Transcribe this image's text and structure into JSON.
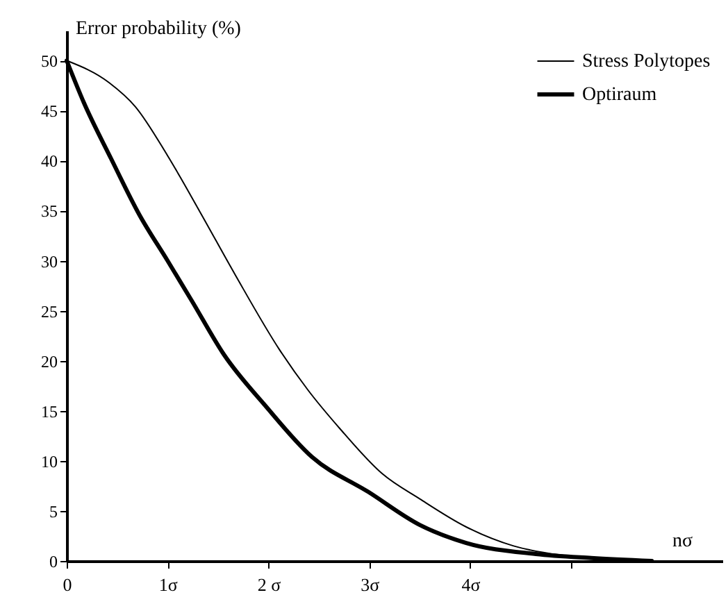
{
  "chart_data": {
    "type": "line",
    "xlabel": "nσ",
    "ylabel": "Error probability (%)",
    "xlim": [
      0,
      6.5
    ],
    "ylim": [
      0,
      53
    ],
    "xticks": [
      {
        "value": 0,
        "label": "0"
      },
      {
        "value": 1,
        "label": "1σ"
      },
      {
        "value": 2,
        "label": "2 σ"
      },
      {
        "value": 3,
        "label": "3σ"
      },
      {
        "value": 4,
        "label": "4σ"
      },
      {
        "value": 5,
        "label": null
      }
    ],
    "yticks": [
      0,
      5,
      10,
      15,
      20,
      25,
      30,
      35,
      40,
      45,
      50
    ],
    "grid": false,
    "legend": "top right",
    "marker": "none",
    "line_style": "solid",
    "series": [
      {
        "name": "Stress Polytopes",
        "color": "#000000",
        "x": [
          0,
          0.42,
          0.68,
          1.0,
          1.32,
          1.67,
          2.11,
          2.39,
          2.71,
          3.13,
          3.5,
          3.96,
          4.43,
          4.89,
          5.2,
          5.8
        ],
        "values": [
          50,
          47.8,
          45.4,
          40.5,
          34.9,
          28.6,
          21.1,
          17.1,
          13.2,
          8.7,
          6.2,
          3.4,
          1.5,
          0.6,
          0.3,
          0
        ]
      },
      {
        "name": "Optiraum",
        "color": "#000000",
        "x": [
          0,
          0.17,
          0.44,
          0.72,
          1.0,
          1.24,
          1.56,
          1.97,
          2.43,
          2.99,
          3.5,
          3.96,
          4.65,
          5.2,
          5.8
        ],
        "values": [
          50,
          45.8,
          40.2,
          34.6,
          30,
          26,
          20.6,
          15.5,
          10.4,
          6.9,
          3.6,
          1.8,
          0.7,
          0.3,
          0
        ]
      }
    ]
  }
}
